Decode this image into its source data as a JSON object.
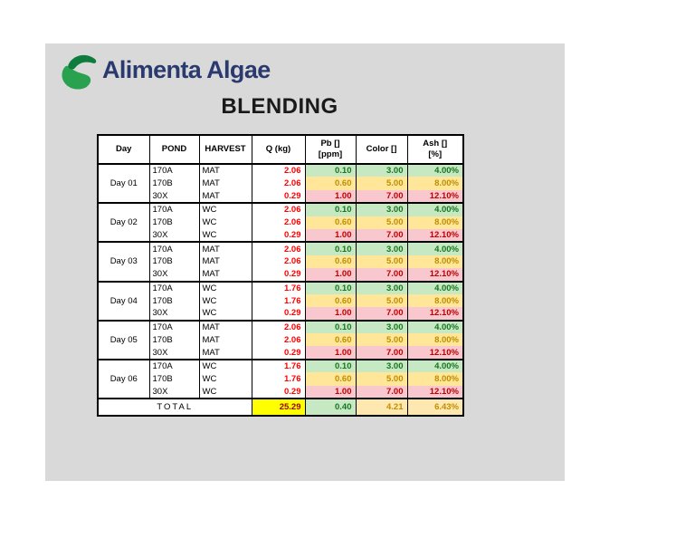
{
  "logo": {
    "brand": "Alimenta Algae",
    "icon": "algae-leaf-globe-icon"
  },
  "title": "BLENDING",
  "table": {
    "columns": [
      {
        "id": "day",
        "lines": [
          "Day"
        ]
      },
      {
        "id": "pond",
        "lines": [
          "POND"
        ]
      },
      {
        "id": "harvest",
        "lines": [
          "HARVEST"
        ]
      },
      {
        "id": "q",
        "lines": [
          "Q (kg)"
        ]
      },
      {
        "id": "pb",
        "lines": [
          "Pb []",
          "[ppm]"
        ]
      },
      {
        "id": "color",
        "lines": [
          "Color []"
        ]
      },
      {
        "id": "ash",
        "lines": [
          "Ash []",
          "[%]"
        ]
      }
    ],
    "groups": [
      {
        "day": "Day 01",
        "rows": [
          {
            "pond": "170A",
            "harvest": "MAT",
            "q": "2.06",
            "pb": "0.10",
            "color": "3.00",
            "ash": "4.00%",
            "status": "good"
          },
          {
            "pond": "170B",
            "harvest": "MAT",
            "q": "2.06",
            "pb": "0.60",
            "color": "5.00",
            "ash": "8.00%",
            "status": "warn"
          },
          {
            "pond": "30X",
            "harvest": "MAT",
            "q": "0.29",
            "pb": "1.00",
            "color": "7.00",
            "ash": "12.10%",
            "status": "bad"
          }
        ]
      },
      {
        "day": "Day 02",
        "rows": [
          {
            "pond": "170A",
            "harvest": "WC",
            "q": "2.06",
            "pb": "0.10",
            "color": "3.00",
            "ash": "4.00%",
            "status": "good"
          },
          {
            "pond": "170B",
            "harvest": "WC",
            "q": "2.06",
            "pb": "0.60",
            "color": "5.00",
            "ash": "8.00%",
            "status": "warn"
          },
          {
            "pond": "30X",
            "harvest": "WC",
            "q": "0.29",
            "pb": "1.00",
            "color": "7.00",
            "ash": "12.10%",
            "status": "bad"
          }
        ]
      },
      {
        "day": "Day 03",
        "rows": [
          {
            "pond": "170A",
            "harvest": "MAT",
            "q": "2.06",
            "pb": "0.10",
            "color": "3.00",
            "ash": "4.00%",
            "status": "good"
          },
          {
            "pond": "170B",
            "harvest": "MAT",
            "q": "2.06",
            "pb": "0.60",
            "color": "5.00",
            "ash": "8.00%",
            "status": "warn"
          },
          {
            "pond": "30X",
            "harvest": "MAT",
            "q": "0.29",
            "pb": "1.00",
            "color": "7.00",
            "ash": "12.10%",
            "status": "bad"
          }
        ]
      },
      {
        "day": "Day 04",
        "rows": [
          {
            "pond": "170A",
            "harvest": "WC",
            "q": "1.76",
            "pb": "0.10",
            "color": "3.00",
            "ash": "4.00%",
            "status": "good"
          },
          {
            "pond": "170B",
            "harvest": "WC",
            "q": "1.76",
            "pb": "0.60",
            "color": "5.00",
            "ash": "8.00%",
            "status": "warn"
          },
          {
            "pond": "30X",
            "harvest": "WC",
            "q": "0.29",
            "pb": "1.00",
            "color": "7.00",
            "ash": "12.10%",
            "status": "bad"
          }
        ]
      },
      {
        "day": "Day 05",
        "rows": [
          {
            "pond": "170A",
            "harvest": "MAT",
            "q": "2.06",
            "pb": "0.10",
            "color": "3.00",
            "ash": "4.00%",
            "status": "good"
          },
          {
            "pond": "170B",
            "harvest": "MAT",
            "q": "2.06",
            "pb": "0.60",
            "color": "5.00",
            "ash": "8.00%",
            "status": "warn"
          },
          {
            "pond": "30X",
            "harvest": "MAT",
            "q": "0.29",
            "pb": "1.00",
            "color": "7.00",
            "ash": "12.10%",
            "status": "bad"
          }
        ]
      },
      {
        "day": "Day 06",
        "rows": [
          {
            "pond": "170A",
            "harvest": "WC",
            "q": "1.76",
            "pb": "0.10",
            "color": "3.00",
            "ash": "4.00%",
            "status": "good"
          },
          {
            "pond": "170B",
            "harvest": "WC",
            "q": "1.76",
            "pb": "0.60",
            "color": "5.00",
            "ash": "8.00%",
            "status": "warn"
          },
          {
            "pond": "30X",
            "harvest": "WC",
            "q": "0.29",
            "pb": "1.00",
            "color": "7.00",
            "ash": "12.10%",
            "status": "bad"
          }
        ]
      }
    ],
    "total": {
      "label": "TOTAL",
      "q": "25.29",
      "pb": "0.40",
      "color": "4.21",
      "ash": "6.43%"
    }
  },
  "colors": {
    "slide_bg": "#d9d9d9",
    "brand_text": "#2a3a6e",
    "title_text": "#1a1a1a",
    "good_bg": "#c6e8c3",
    "good_text": "#17761f",
    "warn_bg": "#ffe699",
    "warn_text": "#bf8f00",
    "bad_bg": "#f9c7ce",
    "bad_text": "#c00000",
    "q_text": "#ff0000",
    "total_q_bg": "#ffff00",
    "total_q_text": "#9c0000",
    "amber_bg": "#ffe8b0",
    "amber_text": "#bf8f00",
    "border": "#000000",
    "logo_green_dark": "#0e7c3c",
    "logo_green_light": "#2aa14f"
  }
}
